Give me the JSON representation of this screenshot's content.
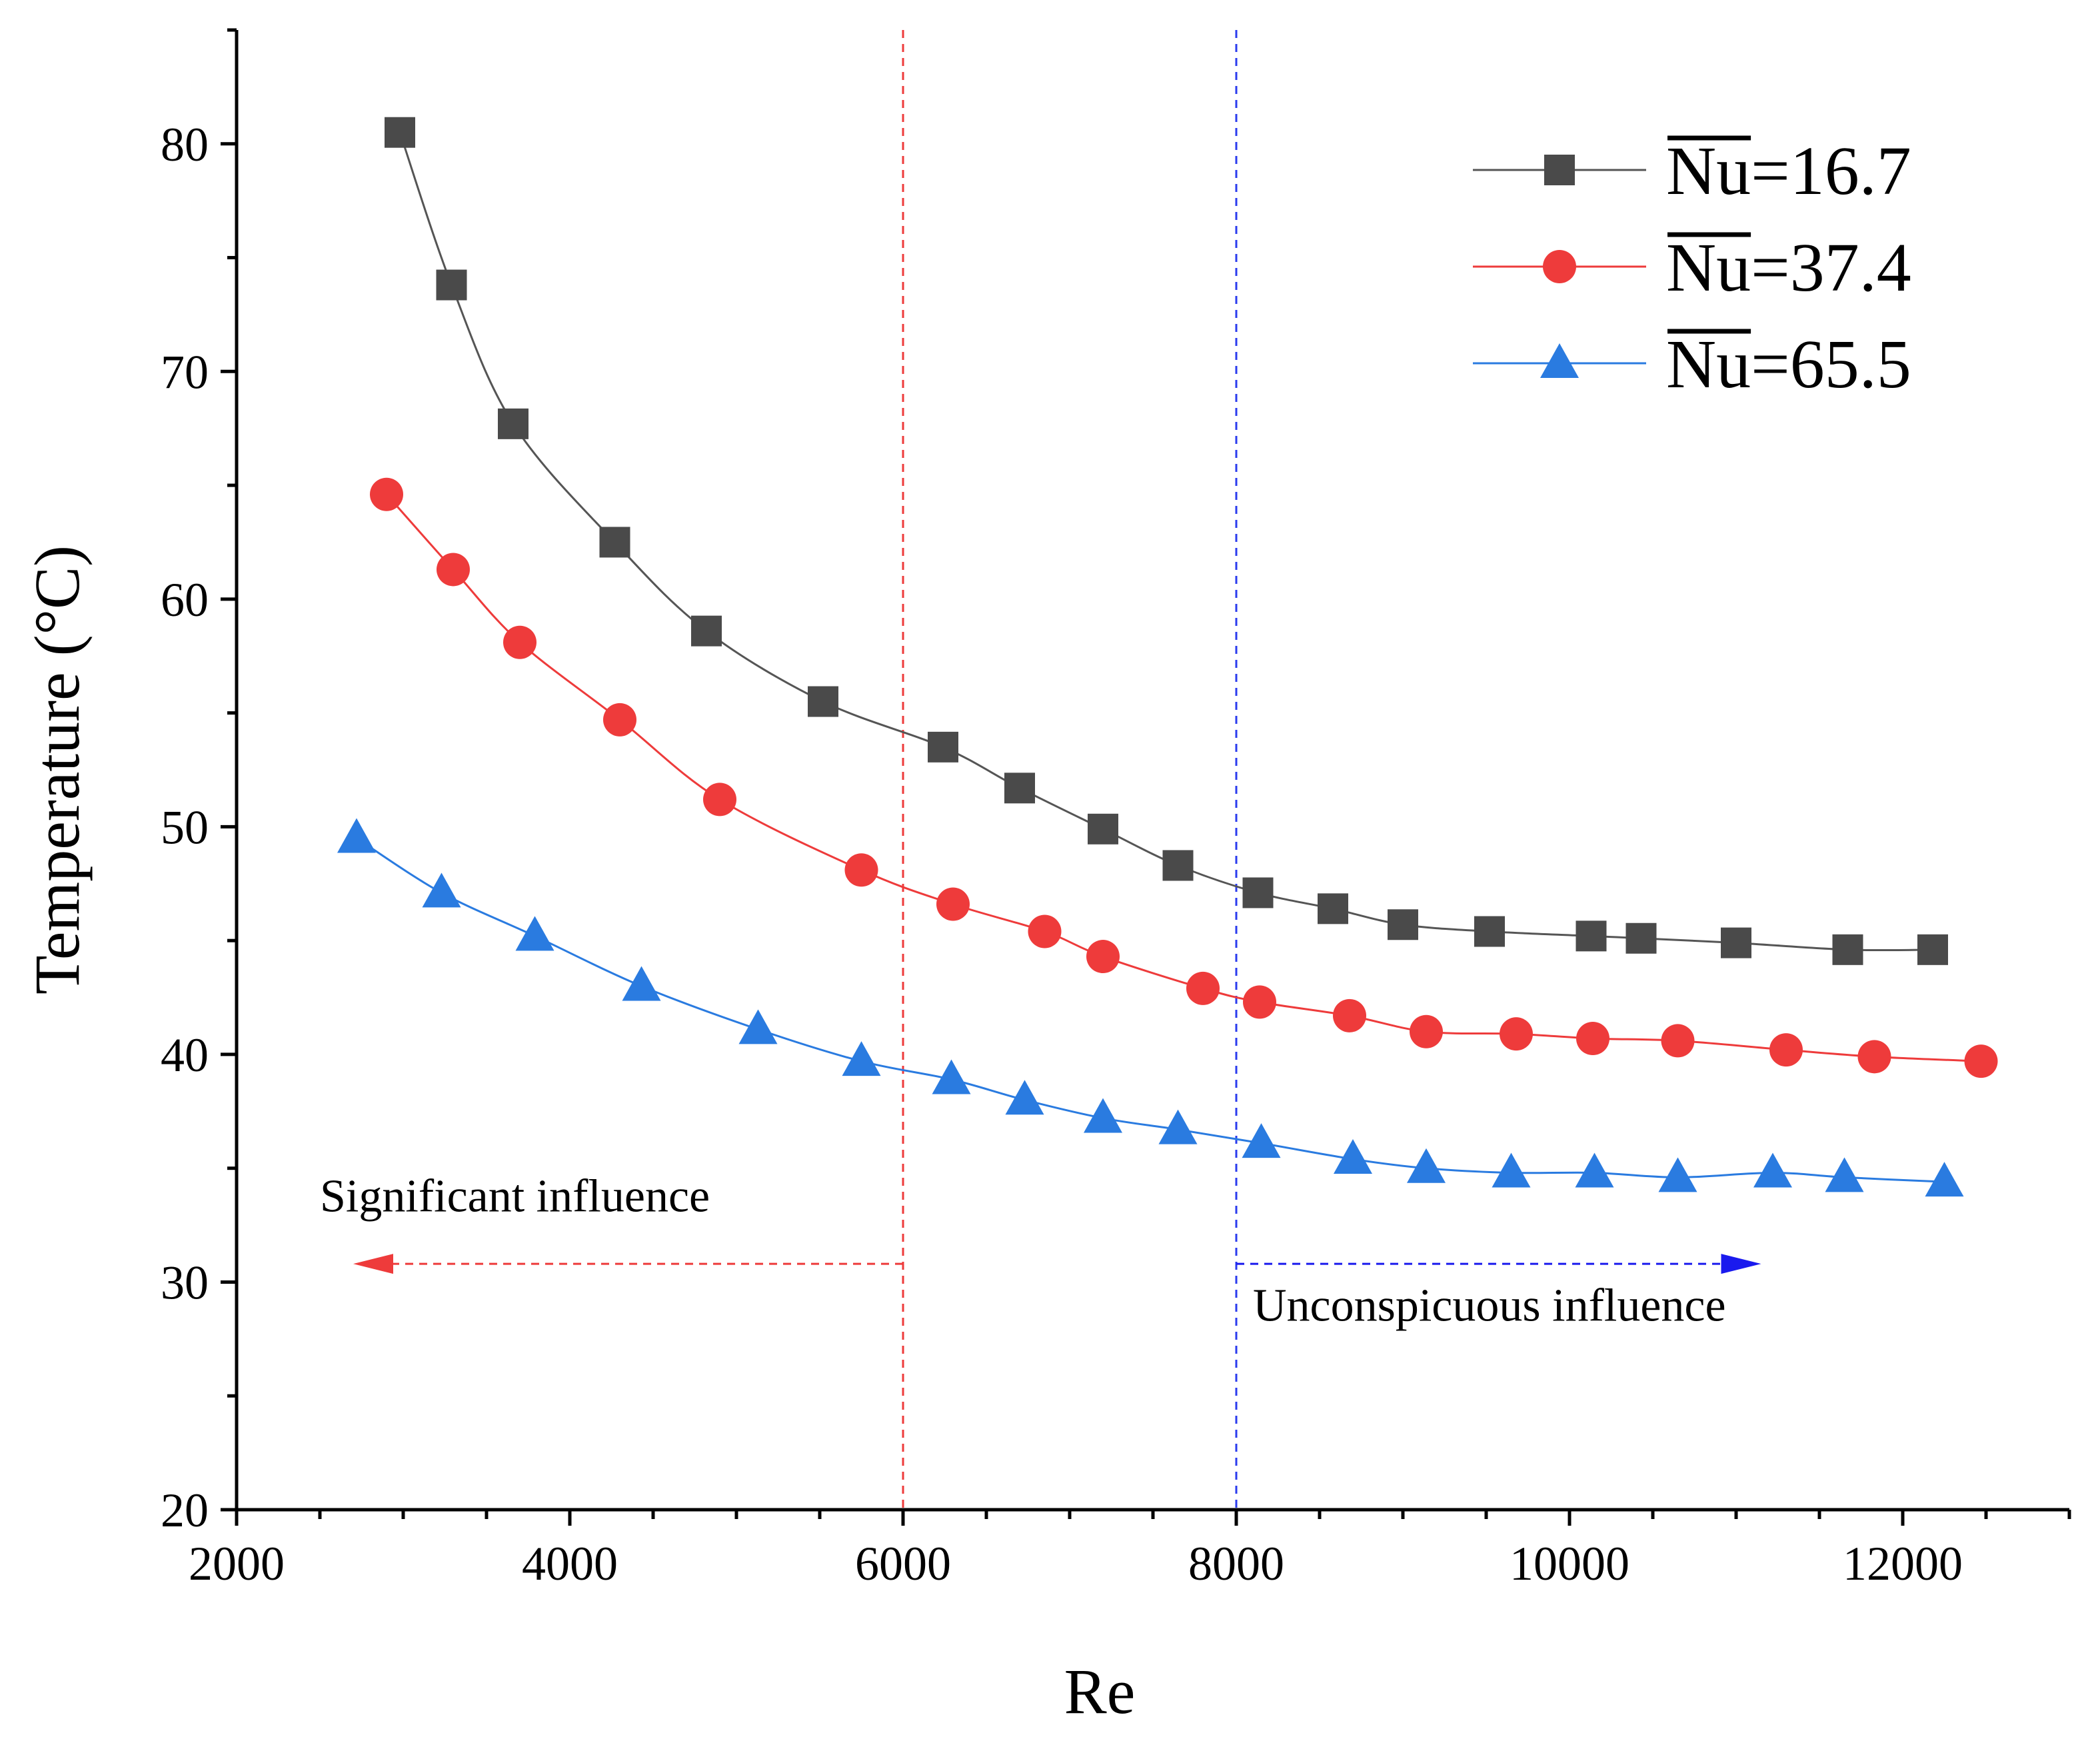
{
  "chart_data": {
    "type": "line",
    "xlabel": "Re",
    "ylabel": "Temperature (°C)",
    "xlim": [
      2000,
      13000
    ],
    "ylim": [
      20,
      85
    ],
    "xticks": [
      2000,
      4000,
      6000,
      8000,
      10000,
      12000
    ],
    "yticks": [
      20,
      30,
      40,
      50,
      60,
      70,
      80
    ],
    "grid": false,
    "legend_position": "top-right",
    "series": [
      {
        "name_symbol": "Nu",
        "name_value": "=16.7",
        "color": "#4a4a4a",
        "line_color": "#555555",
        "marker": "square",
        "x": [
          2980,
          3290,
          3660,
          4270,
          4820,
          5520,
          6240,
          6700,
          7200,
          7650,
          8130,
          8580,
          9000,
          9520,
          10130,
          10430,
          11000,
          11670,
          12180
        ],
        "y": [
          80.5,
          73.8,
          67.7,
          62.5,
          58.6,
          55.5,
          53.5,
          51.7,
          49.9,
          48.3,
          47.1,
          46.4,
          45.7,
          45.4,
          45.2,
          45.1,
          44.9,
          44.6,
          44.6
        ]
      },
      {
        "name_symbol": "Nu",
        "name_value": "=37.4",
        "color": "#ee3b3b",
        "line_color": "#ee3b3b",
        "marker": "circle",
        "x": [
          2900,
          3300,
          3700,
          4300,
          4900,
          5750,
          6300,
          6850,
          7200,
          7800,
          8140,
          8680,
          9140,
          9680,
          10140,
          10650,
          11300,
          11830,
          12470
        ],
        "y": [
          64.6,
          61.3,
          58.1,
          54.7,
          51.2,
          48.1,
          46.6,
          45.4,
          44.3,
          42.9,
          42.3,
          41.7,
          41.0,
          40.9,
          40.7,
          40.6,
          40.2,
          39.9,
          39.7
        ]
      },
      {
        "name_symbol": "Nu",
        "name_value": "=65.5",
        "color": "#2a7be0",
        "line_color": "#2a7be0",
        "marker": "triangle",
        "x": [
          2720,
          3230,
          3790,
          4430,
          5130,
          5750,
          6290,
          6730,
          7200,
          7650,
          8150,
          8700,
          9140,
          9650,
          10150,
          10650,
          11220,
          11650,
          12250
        ],
        "y": [
          49.5,
          47.1,
          45.2,
          43.0,
          41.1,
          39.7,
          38.9,
          38.0,
          37.2,
          36.7,
          36.1,
          35.4,
          35.0,
          34.8,
          34.8,
          34.6,
          34.8,
          34.6,
          34.4
        ]
      }
    ],
    "reference_lines": [
      {
        "x": 6000,
        "color": "#ee3b3b"
      },
      {
        "x": 8000,
        "color": "#2a3bee"
      }
    ],
    "annotations": [
      {
        "text": "Significant influence",
        "color": "#ee3b3b",
        "arrow_from_x": 6000,
        "arrow_to_x": 2700,
        "arrow_y": 30.8,
        "text_x": 2500,
        "text_y": 33.1
      },
      {
        "text": "Unconspicuous influence",
        "color": "#1a1aee",
        "arrow_from_x": 8000,
        "arrow_to_x": 11150,
        "arrow_y": 30.8,
        "text_x": 8100,
        "text_y": 28.3
      }
    ]
  }
}
